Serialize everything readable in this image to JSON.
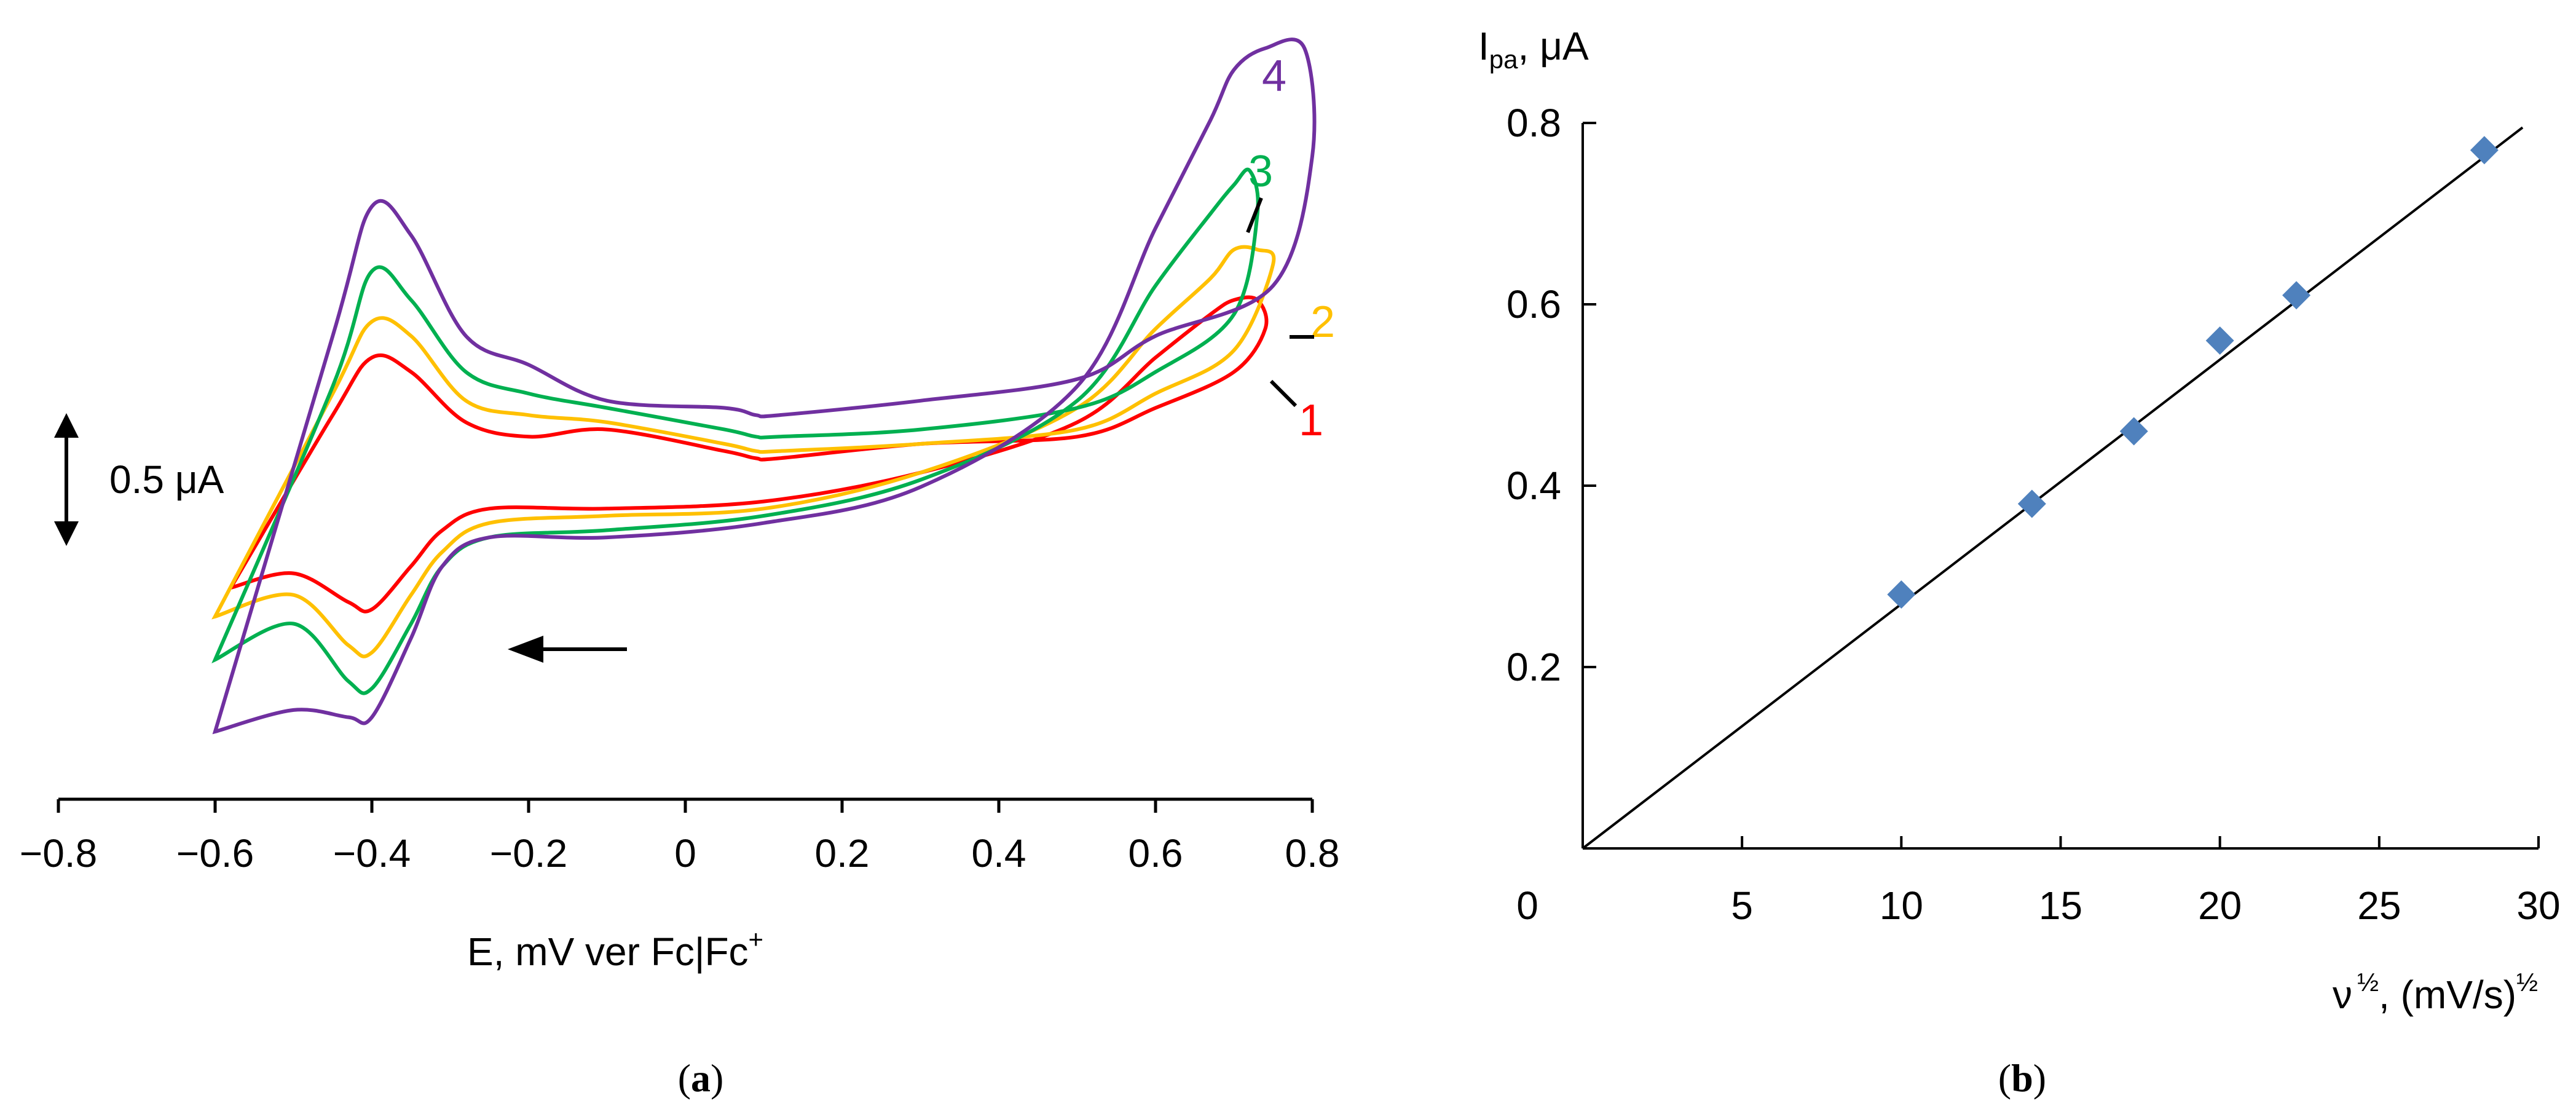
{
  "chart_data": [
    {
      "type": "line",
      "panel_label": "a",
      "xlabel": "E, mV ver Fc|Fc",
      "xlabel_superscript": "+",
      "x_ticks": [
        "−0.8",
        "−0.6",
        "−0.4",
        "−0.2",
        "0",
        "0.2",
        "0.4",
        "0.6",
        "0.8"
      ],
      "x_tick_values": [
        -0.8,
        -0.6,
        -0.4,
        -0.2,
        0,
        0.2,
        0.4,
        0.6,
        0.8
      ],
      "xlim": [
        -0.8,
        0.8
      ],
      "scale_bar_label": "0.5 μA",
      "scale_bar_value": 0.5,
      "scan_direction": "negative (arrow pointing left)",
      "series": [
        {
          "name": "1",
          "color": "#ff0000",
          "x": [
            -0.58,
            -0.5,
            -0.43,
            -0.4,
            -0.35,
            -0.31,
            -0.25,
            -0.1,
            0.1,
            0.3,
            0.5,
            0.6,
            0.67,
            0.7,
            0.73,
            0.74,
            0.7,
            0.6,
            0.5,
            0.3,
            0.12,
            0.09,
            0.05,
            -0.1,
            -0.2,
            -0.28,
            -0.35,
            -0.4,
            -0.45,
            -0.58
          ],
          "y": [
            0.2,
            0.22,
            0.18,
            0.17,
            0.23,
            0.28,
            0.31,
            0.31,
            0.32,
            0.36,
            0.43,
            0.52,
            0.58,
            0.6,
            0.6,
            0.56,
            0.5,
            0.45,
            0.41,
            0.4,
            0.38,
            0.38,
            0.39,
            0.42,
            0.41,
            0.43,
            0.5,
            0.52,
            0.44,
            0.2
          ]
        },
        {
          "name": "2",
          "color": "#ffc000",
          "x": [
            -0.6,
            -0.5,
            -0.43,
            -0.4,
            -0.35,
            -0.31,
            -0.25,
            -0.1,
            0.1,
            0.3,
            0.5,
            0.6,
            0.67,
            0.7,
            0.73,
            0.75,
            0.7,
            0.6,
            0.5,
            0.3,
            0.12,
            0.09,
            0.05,
            -0.1,
            -0.2,
            -0.28,
            -0.35,
            -0.4,
            -0.45,
            -0.6
          ],
          "y": [
            0.16,
            0.19,
            0.12,
            0.11,
            0.19,
            0.25,
            0.29,
            0.3,
            0.31,
            0.36,
            0.45,
            0.56,
            0.63,
            0.67,
            0.67,
            0.65,
            0.53,
            0.47,
            0.42,
            0.4,
            0.39,
            0.39,
            0.4,
            0.43,
            0.44,
            0.46,
            0.55,
            0.57,
            0.47,
            0.16
          ]
        },
        {
          "name": "3",
          "color": "#00b050",
          "x": [
            -0.6,
            -0.5,
            -0.43,
            -0.4,
            -0.35,
            -0.31,
            -0.25,
            -0.1,
            0.1,
            0.3,
            0.5,
            0.6,
            0.67,
            0.7,
            0.72,
            0.73,
            0.7,
            0.6,
            0.5,
            0.3,
            0.12,
            0.09,
            0.05,
            -0.1,
            -0.2,
            -0.28,
            -0.35,
            -0.4,
            -0.45,
            -0.6
          ],
          "y": [
            0.1,
            0.15,
            0.07,
            0.06,
            0.15,
            0.23,
            0.27,
            0.28,
            0.3,
            0.35,
            0.46,
            0.62,
            0.72,
            0.76,
            0.78,
            0.72,
            0.58,
            0.5,
            0.45,
            0.42,
            0.41,
            0.41,
            0.42,
            0.45,
            0.47,
            0.5,
            0.6,
            0.64,
            0.48,
            0.1
          ]
        },
        {
          "name": "4",
          "color": "#7030a0",
          "x": [
            -0.6,
            -0.5,
            -0.43,
            -0.4,
            -0.35,
            -0.31,
            -0.25,
            -0.1,
            0.1,
            0.3,
            0.5,
            0.6,
            0.67,
            0.7,
            0.74,
            0.79,
            0.8,
            0.75,
            0.6,
            0.5,
            0.3,
            0.12,
            0.09,
            0.05,
            -0.1,
            -0.2,
            -0.28,
            -0.35,
            -0.4,
            -0.45,
            -0.6
          ],
          "y": [
            0.0,
            0.03,
            0.02,
            0.02,
            0.13,
            0.23,
            0.27,
            0.27,
            0.29,
            0.34,
            0.48,
            0.7,
            0.85,
            0.92,
            0.95,
            0.95,
            0.8,
            0.62,
            0.55,
            0.49,
            0.46,
            0.44,
            0.44,
            0.45,
            0.46,
            0.51,
            0.55,
            0.69,
            0.73,
            0.55,
            0.0
          ]
        }
      ]
    },
    {
      "type": "scatter",
      "panel_label": "b",
      "ylabel_main": "I",
      "ylabel_sub": "pa",
      "ylabel_unit": ", μA",
      "xlabel_main": "ν",
      "xlabel_sup1": "½",
      "xlabel_unit": ", (mV/s)",
      "xlabel_sup2": "½",
      "x_ticks": [
        "0",
        "5",
        "10",
        "15",
        "20",
        "25",
        "30"
      ],
      "x_tick_values": [
        0,
        5,
        10,
        15,
        20,
        25,
        30
      ],
      "y_ticks": [
        "0.2",
        "0.4",
        "0.6",
        "0.8"
      ],
      "y_tick_values": [
        0.2,
        0.4,
        0.6,
        0.8
      ],
      "xlim": [
        0,
        30
      ],
      "ylim": [
        0,
        0.8
      ],
      "marker_color": "#4f81bd",
      "points": {
        "x": [
          10.0,
          14.1,
          17.3,
          20.0,
          22.4,
          28.3
        ],
        "y": [
          0.28,
          0.38,
          0.46,
          0.56,
          0.61,
          0.77
        ]
      },
      "fit_line": {
        "x": [
          0,
          29.5
        ],
        "y": [
          0,
          0.795
        ]
      }
    }
  ]
}
